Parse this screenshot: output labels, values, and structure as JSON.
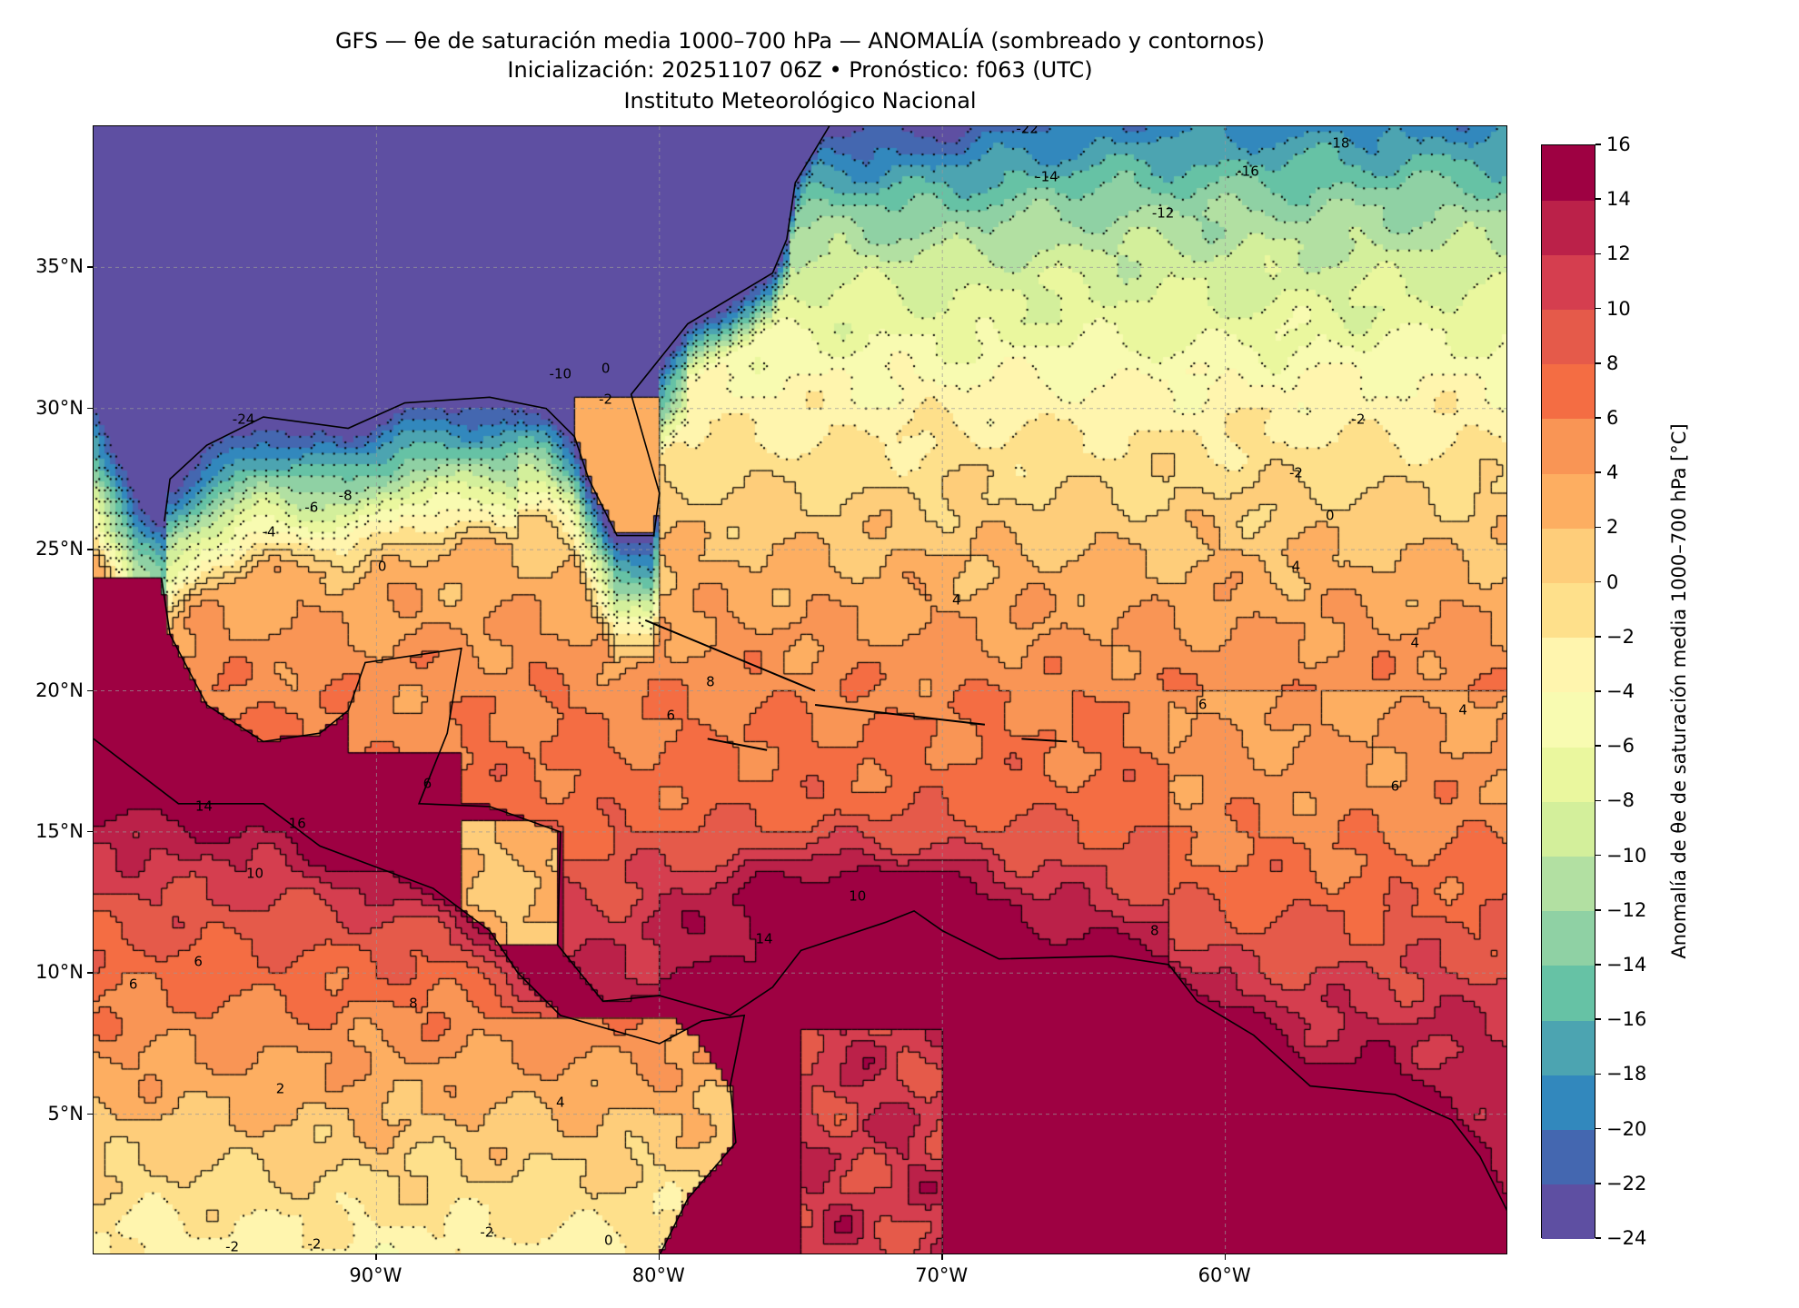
{
  "title": {
    "line1": "GFS — θe de saturación media 1000–700 hPa — ANOMALÍA (sombreado y contornos)",
    "line2": "Inicialización: 20251107 06Z   •   Pronóstico: f063 (UTC)",
    "line3": "Instituto Meteorológico Nacional"
  },
  "map": {
    "lon_range": [
      -100,
      -50
    ],
    "lat_range": [
      0,
      40
    ],
    "x_ticks": [
      {
        "label": "90°W",
        "lon": -90
      },
      {
        "label": "80°W",
        "lon": -80
      },
      {
        "label": "70°W",
        "lon": -70
      },
      {
        "label": "60°W",
        "lon": -60
      }
    ],
    "y_ticks": [
      {
        "label": "5°N",
        "lat": 5
      },
      {
        "label": "10°N",
        "lat": 10
      },
      {
        "label": "15°N",
        "lat": 15
      },
      {
        "label": "20°N",
        "lat": 20
      },
      {
        "label": "25°N",
        "lat": 25
      },
      {
        "label": "30°N",
        "lat": 30
      },
      {
        "label": "35°N",
        "lat": 35
      }
    ],
    "contour_labels": [
      {
        "text": "-24",
        "lon": -94.7,
        "lat": 29.6
      },
      {
        "text": "-22",
        "lon": -67,
        "lat": 39.9
      },
      {
        "text": "-18",
        "lon": -56,
        "lat": 39.4
      },
      {
        "text": "-16",
        "lon": -59.2,
        "lat": 38.4
      },
      {
        "text": "-14",
        "lon": -66.3,
        "lat": 38.2
      },
      {
        "text": "-12",
        "lon": -62.2,
        "lat": 36.9
      },
      {
        "text": "-10",
        "lon": -83.5,
        "lat": 31.2
      },
      {
        "text": "-8",
        "lon": -91.1,
        "lat": 26.9
      },
      {
        "text": "-6",
        "lon": -92.3,
        "lat": 26.5
      },
      {
        "text": "-4",
        "lon": -93.8,
        "lat": 25.6
      },
      {
        "text": "-2",
        "lon": -81.9,
        "lat": 30.3
      },
      {
        "text": "0",
        "lon": -81.9,
        "lat": 31.4
      },
      {
        "text": "0",
        "lon": -89.8,
        "lat": 24.4
      },
      {
        "text": "-2",
        "lon": -55.3,
        "lat": 29.6
      },
      {
        "text": "-2",
        "lon": -57.5,
        "lat": 27.7
      },
      {
        "text": "0",
        "lon": -56.3,
        "lat": 26.2
      },
      {
        "text": "4",
        "lon": -69.5,
        "lat": 23.2
      },
      {
        "text": "4",
        "lon": -57.5,
        "lat": 24.4
      },
      {
        "text": "4",
        "lon": -53.3,
        "lat": 21.7
      },
      {
        "text": "4",
        "lon": -51.6,
        "lat": 19.3
      },
      {
        "text": "6",
        "lon": -79.6,
        "lat": 19.1
      },
      {
        "text": "6",
        "lon": -88.2,
        "lat": 16.7
      },
      {
        "text": "6",
        "lon": -60.8,
        "lat": 19.5
      },
      {
        "text": "6",
        "lon": -54,
        "lat": 16.6
      },
      {
        "text": "8",
        "lon": -78.2,
        "lat": 20.3
      },
      {
        "text": "8",
        "lon": -62.5,
        "lat": 11.5
      },
      {
        "text": "8",
        "lon": -88.7,
        "lat": 8.9
      },
      {
        "text": "6",
        "lon": -96.3,
        "lat": 10.4
      },
      {
        "text": "6",
        "lon": -98.6,
        "lat": 9.6
      },
      {
        "text": "10",
        "lon": -94.3,
        "lat": 13.5
      },
      {
        "text": "10",
        "lon": -73,
        "lat": 12.7
      },
      {
        "text": "14",
        "lon": -96.1,
        "lat": 15.9
      },
      {
        "text": "16",
        "lon": -92.8,
        "lat": 15.3
      },
      {
        "text": "14",
        "lon": -76.3,
        "lat": 11.2
      },
      {
        "text": "2",
        "lon": -93.4,
        "lat": 5.9
      },
      {
        "text": "4",
        "lon": -83.5,
        "lat": 5.4
      },
      {
        "text": "-2",
        "lon": -92.2,
        "lat": 0.4
      },
      {
        "text": "-2",
        "lon": -86.1,
        "lat": 0.8
      },
      {
        "text": "0",
        "lon": -81.8,
        "lat": 0.5
      },
      {
        "text": "-2",
        "lon": -95.1,
        "lat": 0.3
      }
    ]
  },
  "colorbar": {
    "label": "Anomalía de θe de saturación media 1000–700 hPa [°C]",
    "ticks": [
      "16",
      "14",
      "12",
      "10",
      "8",
      "6",
      "4",
      "2",
      "0",
      "−2",
      "−4",
      "−6",
      "−8",
      "−10",
      "−12",
      "−14",
      "−16",
      "−18",
      "−20",
      "−22",
      "−24"
    ],
    "levels": [
      -24,
      16
    ],
    "colors_bottom_to_top": [
      "#5e4fa2",
      "#4467b0",
      "#3288bd",
      "#4ca4b1",
      "#66c2a5",
      "#8fd1a4",
      "#b2e0a2",
      "#d3ef9b",
      "#eaf79e",
      "#f8fbb1",
      "#fff5ae",
      "#fee08b",
      "#fecd7a",
      "#fdae61",
      "#f99555",
      "#f46d43",
      "#e55a4a",
      "#d53e4f",
      "#bb2149",
      "#9e0142"
    ]
  }
}
